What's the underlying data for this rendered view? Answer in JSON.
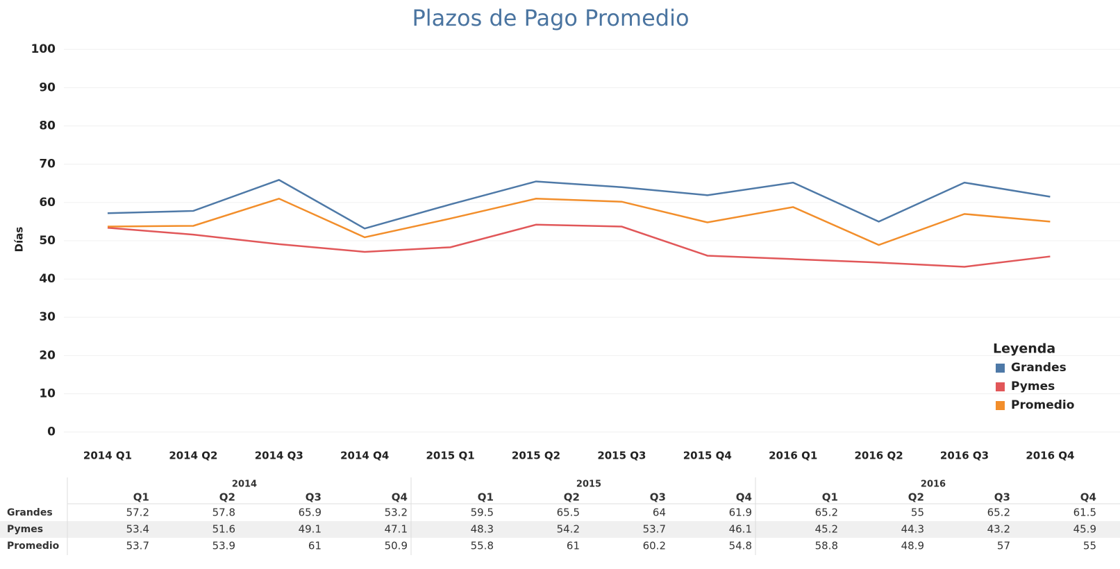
{
  "chart_data": {
    "type": "line",
    "title": "Plazos de Pago Promedio",
    "y_label": "Días",
    "categories": [
      "2014 Q1",
      "2014 Q2",
      "2014 Q3",
      "2014 Q4",
      "2015 Q1",
      "2015 Q2",
      "2015 Q3",
      "2015 Q4",
      "2016 Q1",
      "2016 Q2",
      "2016 Q3",
      "2016 Q4"
    ],
    "series": [
      {
        "name": "Grandes",
        "color": "#4e79a7",
        "values": [
          57.2,
          57.8,
          65.9,
          53.2,
          59.5,
          65.5,
          64,
          61.9,
          65.2,
          55,
          65.2,
          61.5
        ]
      },
      {
        "name": "Pymes",
        "color": "#e15759",
        "values": [
          53.4,
          51.6,
          49.1,
          47.1,
          48.3,
          54.2,
          53.7,
          46.1,
          45.2,
          44.3,
          43.2,
          45.9
        ]
      },
      {
        "name": "Promedio",
        "color": "#f28e2b",
        "values": [
          53.7,
          53.9,
          61,
          50.9,
          55.8,
          61,
          60.2,
          54.8,
          58.8,
          48.9,
          57,
          55
        ]
      }
    ],
    "ylim": [
      -2.6,
      102.4
    ],
    "yticks": [
      0,
      10,
      20,
      30,
      40,
      50,
      60,
      70,
      80,
      90,
      100
    ],
    "grid": true,
    "legend_title": "Leyenda",
    "legend": "bottom-right"
  },
  "table": {
    "years": [
      "2014",
      "2015",
      "2016"
    ],
    "quarters": [
      "Q1",
      "Q2",
      "Q3",
      "Q4"
    ]
  }
}
